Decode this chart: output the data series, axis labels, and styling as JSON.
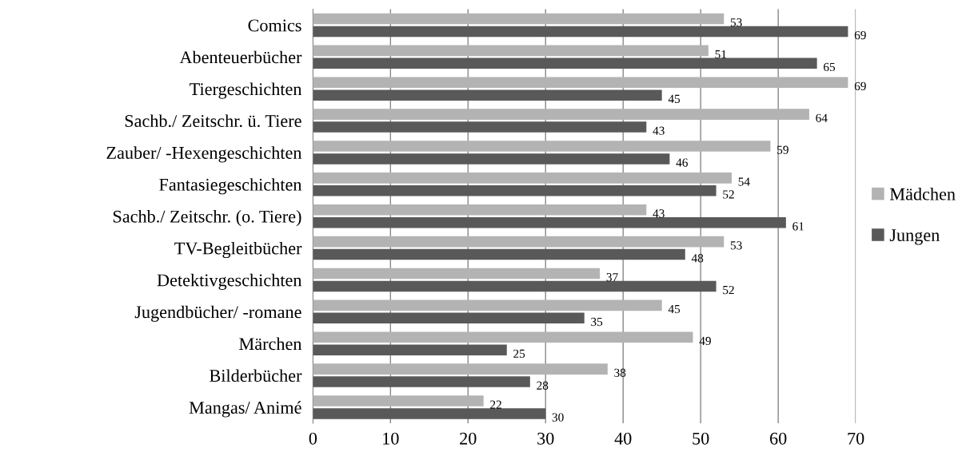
{
  "chart_data": {
    "type": "bar",
    "orientation": "horizontal",
    "categories": [
      "Comics",
      "Abenteuerbücher",
      "Tiergeschichten",
      "Sachb./ Zeitschr. ü. Tiere",
      "Zauber/ -Hexengeschichten",
      "Fantasiegeschichten",
      "Sachb./ Zeitschr. (o. Tiere)",
      "TV-Begleitbücher",
      "Detektivgeschichten",
      "Jugendbücher/ -romane",
      "Märchen",
      "Bilderbücher",
      "Mangas/ Animé"
    ],
    "series": [
      {
        "name": "Mädchen",
        "color": "#b3b3b3",
        "values": [
          53,
          51,
          69,
          64,
          59,
          54,
          43,
          53,
          37,
          45,
          49,
          38,
          22
        ]
      },
      {
        "name": "Jungen",
        "color": "#595959",
        "values": [
          69,
          65,
          45,
          43,
          46,
          52,
          61,
          48,
          52,
          35,
          25,
          28,
          30
        ]
      }
    ],
    "xlim": [
      0,
      70
    ],
    "xticks": [
      0,
      10,
      20,
      30,
      40,
      50,
      60,
      70
    ],
    "grid": "x",
    "legend": "right",
    "data_labels": true
  }
}
